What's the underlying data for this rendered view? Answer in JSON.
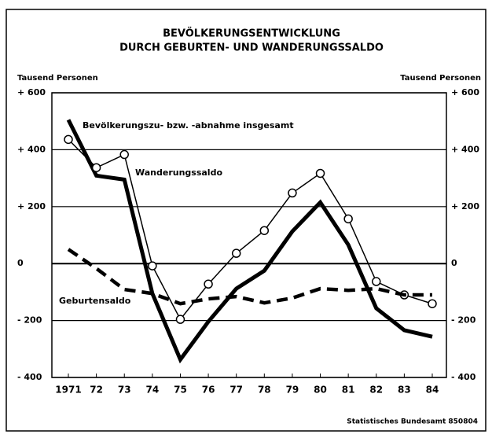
{
  "chart_data": {
    "type": "line",
    "title": "BEVÖLKERUNGSENTWICKLUNG",
    "subtitle": "DURCH GEBURTEN- UND WANDERUNGSSALDO",
    "ylabel": "Tausend Personen",
    "source": "Statistisches Bundesamt 850804",
    "categories": [
      "1971",
      "72",
      "73",
      "74",
      "75",
      "76",
      "77",
      "78",
      "79",
      "80",
      "81",
      "82",
      "83",
      "84"
    ],
    "series": [
      {
        "name": "Bevölkerungszu- bzw. -abnahme insgesamt",
        "color": "#000000",
        "width": 5,
        "dashed": false,
        "markers": false,
        "values": [
          505,
          309,
          295,
          -105,
          -337,
          -204,
          -88,
          -25,
          113,
          215,
          66,
          -157,
          -234,
          -257
        ]
      },
      {
        "name": "Wanderungssaldo",
        "color": "#000000",
        "width": 1.5,
        "dashed": false,
        "markers": true,
        "values": [
          436,
          337,
          383,
          -8,
          -196,
          -72,
          36,
          116,
          248,
          317,
          157,
          -63,
          -110,
          -141
        ]
      },
      {
        "name": "Geburtensaldo",
        "color": "#000000",
        "width": 4.5,
        "dashed": true,
        "markers": false,
        "values": [
          50,
          -17,
          -91,
          -105,
          -141,
          -124,
          -116,
          -138,
          -121,
          -88,
          -94,
          -88,
          -110,
          -110
        ]
      }
    ],
    "ylim": [
      -400,
      600
    ],
    "yticks": [
      {
        "value": -400,
        "label": "- 400"
      },
      {
        "value": -200,
        "label": "- 200"
      },
      0,
      {
        "value": 200,
        "label": "+ 200"
      },
      {
        "value": 400,
        "label": "+ 400"
      },
      {
        "value": 600,
        "label": "+ 600"
      }
    ],
    "grid": true
  }
}
